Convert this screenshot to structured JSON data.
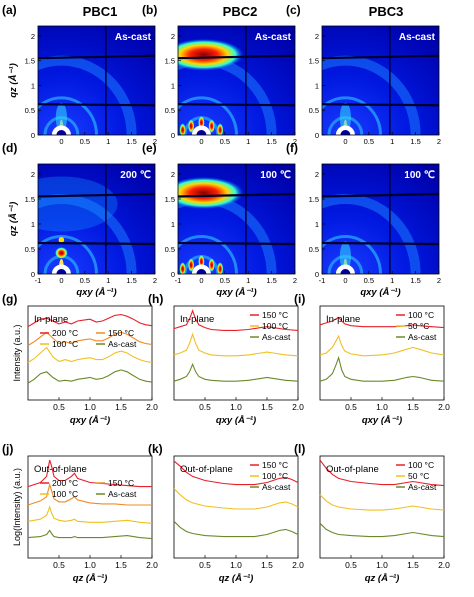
{
  "column_titles": [
    "PBC1",
    "PBC2",
    "PBC3"
  ],
  "panel_letters": [
    "(a)",
    "(b)",
    "(c)",
    "(d)",
    "(e)",
    "(f)",
    "(g)",
    "(h)",
    "(i)",
    "(j)",
    "(k)",
    "(l)"
  ],
  "giwaxs": {
    "ylabel": "qz (Å⁻¹)",
    "xlabel": "qxy (Å⁻¹)",
    "xticks": [
      "-1",
      "0",
      "1",
      "2"
    ],
    "xticks_wide": [
      "-1",
      "0",
      "0.5",
      "1",
      "1.5",
      "2"
    ],
    "yticks": [
      "0",
      "0.5",
      "1",
      "1.5",
      "2"
    ],
    "xlim": [
      -0.5,
      2.0
    ],
    "ylim": [
      0,
      2.2
    ],
    "colormap": [
      "#00007a",
      "#0000ff",
      "#00a8ff",
      "#20ffd8",
      "#c8ff30",
      "#ffd800",
      "#ff3000",
      "#900000"
    ],
    "panels": [
      {
        "label": "As-cast",
        "intensity": "low"
      },
      {
        "label": "As-cast",
        "intensity": "high"
      },
      {
        "label": "As-cast",
        "intensity": "low"
      },
      {
        "label": "200 ℃",
        "intensity": "medium"
      },
      {
        "label": "100 ℃",
        "intensity": "high"
      },
      {
        "label": "100 ℃",
        "intensity": "low"
      }
    ]
  },
  "chart_data": [
    {
      "type": "line",
      "panel": "(g)",
      "title": "In-plane",
      "xlabel": "qxy (Å⁻¹)",
      "ylabel": "Intensity (a.u.)",
      "xlim": [
        0.0,
        2.0
      ],
      "xticks": [
        0.5,
        1.0,
        1.5,
        2.0
      ],
      "series": [
        {
          "name": "200 °C",
          "color": "#e8202a",
          "x": [
            0.0,
            0.1,
            0.2,
            0.3,
            0.4,
            0.5,
            0.6,
            0.7,
            0.8,
            0.9,
            1.0,
            1.1,
            1.2,
            1.3,
            1.4,
            1.5,
            1.6,
            1.7,
            1.8,
            1.9,
            2.0
          ],
          "y": [
            0.78,
            0.82,
            0.86,
            0.87,
            0.84,
            0.81,
            0.83,
            0.81,
            0.84,
            0.85,
            0.86,
            0.83,
            0.84,
            0.87,
            0.9,
            0.91,
            0.89,
            0.86,
            0.82,
            0.8,
            0.79
          ]
        },
        {
          "name": "150 °C",
          "color": "#f08a24",
          "x": [
            0.0,
            0.1,
            0.2,
            0.3,
            0.4,
            0.5,
            0.6,
            0.7,
            0.8,
            0.9,
            1.0,
            1.1,
            1.2,
            1.3,
            1.4,
            1.5,
            1.6,
            1.7,
            1.8,
            1.9,
            2.0
          ],
          "y": [
            0.58,
            0.62,
            0.67,
            0.72,
            0.66,
            0.6,
            0.62,
            0.6,
            0.63,
            0.64,
            0.65,
            0.63,
            0.63,
            0.66,
            0.7,
            0.72,
            0.7,
            0.66,
            0.62,
            0.6,
            0.59
          ]
        },
        {
          "name": "100 °C",
          "color": "#f0c020",
          "x": [
            0.0,
            0.1,
            0.2,
            0.3,
            0.4,
            0.5,
            0.6,
            0.7,
            0.8,
            0.9,
            1.0,
            1.1,
            1.2,
            1.3,
            1.4,
            1.5,
            1.6,
            1.7,
            1.8,
            1.9,
            2.0
          ],
          "y": [
            0.4,
            0.44,
            0.5,
            0.56,
            0.46,
            0.41,
            0.43,
            0.41,
            0.43,
            0.44,
            0.45,
            0.43,
            0.43,
            0.46,
            0.5,
            0.52,
            0.5,
            0.46,
            0.43,
            0.41,
            0.4
          ]
        },
        {
          "name": "As-cast",
          "color": "#6a8a2a",
          "x": [
            0.0,
            0.1,
            0.2,
            0.3,
            0.4,
            0.5,
            0.6,
            0.7,
            0.8,
            0.9,
            1.0,
            1.1,
            1.2,
            1.3,
            1.4,
            1.5,
            1.6,
            1.7,
            1.8,
            1.9,
            2.0
          ],
          "y": [
            0.18,
            0.22,
            0.28,
            0.3,
            0.24,
            0.2,
            0.21,
            0.2,
            0.22,
            0.23,
            0.24,
            0.22,
            0.23,
            0.26,
            0.3,
            0.32,
            0.3,
            0.26,
            0.22,
            0.2,
            0.19
          ]
        }
      ]
    },
    {
      "type": "line",
      "panel": "(h)",
      "title": "In-plane",
      "xlabel": "qxy (Å⁻¹)",
      "ylabel": "",
      "xlim": [
        0.0,
        2.0
      ],
      "xticks": [
        0.5,
        1.0,
        1.5,
        2.0
      ],
      "series": [
        {
          "name": "150 °C",
          "color": "#e8202a",
          "x": [
            0.0,
            0.1,
            0.2,
            0.25,
            0.3,
            0.35,
            0.4,
            0.5,
            0.6,
            0.8,
            1.0,
            1.2,
            1.4,
            1.5,
            1.6,
            1.8,
            2.0
          ],
          "y": [
            0.76,
            0.78,
            0.8,
            0.86,
            0.95,
            0.86,
            0.8,
            0.77,
            0.75,
            0.74,
            0.74,
            0.75,
            0.77,
            0.78,
            0.77,
            0.75,
            0.74
          ]
        },
        {
          "name": "100 °C",
          "color": "#f0c020",
          "x": [
            0.0,
            0.1,
            0.2,
            0.25,
            0.3,
            0.35,
            0.4,
            0.5,
            0.6,
            0.8,
            1.0,
            1.2,
            1.4,
            1.5,
            1.6,
            1.8,
            2.0
          ],
          "y": [
            0.48,
            0.5,
            0.53,
            0.6,
            0.7,
            0.6,
            0.53,
            0.5,
            0.48,
            0.47,
            0.47,
            0.48,
            0.5,
            0.51,
            0.5,
            0.48,
            0.47
          ]
        },
        {
          "name": "As-cast",
          "color": "#6a8a2a",
          "x": [
            0.0,
            0.1,
            0.2,
            0.25,
            0.3,
            0.35,
            0.4,
            0.5,
            0.6,
            0.8,
            1.0,
            1.2,
            1.4,
            1.5,
            1.6,
            1.8,
            2.0
          ],
          "y": [
            0.2,
            0.22,
            0.25,
            0.3,
            0.38,
            0.3,
            0.25,
            0.22,
            0.21,
            0.2,
            0.2,
            0.21,
            0.23,
            0.24,
            0.23,
            0.21,
            0.2
          ]
        }
      ]
    },
    {
      "type": "line",
      "panel": "(i)",
      "title": "In-plane",
      "xlabel": "qxy (Å⁻¹)",
      "ylabel": "",
      "xlim": [
        0.0,
        2.0
      ],
      "xticks": [
        0.5,
        1.0,
        1.5,
        2.0
      ],
      "series": [
        {
          "name": "100 °C",
          "color": "#e8202a",
          "x": [
            0.0,
            0.1,
            0.2,
            0.25,
            0.3,
            0.35,
            0.4,
            0.5,
            0.7,
            1.0,
            1.2,
            1.4,
            1.5,
            1.6,
            1.8,
            2.0
          ],
          "y": [
            0.8,
            0.82,
            0.84,
            0.86,
            0.88,
            0.84,
            0.81,
            0.79,
            0.78,
            0.78,
            0.78,
            0.79,
            0.8,
            0.79,
            0.78,
            0.77
          ]
        },
        {
          "name": "50 °C",
          "color": "#f0c020",
          "x": [
            0.0,
            0.1,
            0.2,
            0.25,
            0.3,
            0.35,
            0.4,
            0.5,
            0.7,
            1.0,
            1.2,
            1.4,
            1.5,
            1.6,
            1.8,
            2.0
          ],
          "y": [
            0.48,
            0.5,
            0.56,
            0.62,
            0.68,
            0.58,
            0.52,
            0.49,
            0.47,
            0.48,
            0.5,
            0.54,
            0.56,
            0.54,
            0.5,
            0.48
          ]
        },
        {
          "name": "As-cast",
          "color": "#6a8a2a",
          "x": [
            0.0,
            0.1,
            0.2,
            0.25,
            0.3,
            0.35,
            0.4,
            0.5,
            0.7,
            1.0,
            1.2,
            1.4,
            1.5,
            1.6,
            1.8,
            2.0
          ],
          "y": [
            0.2,
            0.22,
            0.28,
            0.36,
            0.45,
            0.32,
            0.25,
            0.22,
            0.2,
            0.2,
            0.21,
            0.24,
            0.25,
            0.24,
            0.21,
            0.2
          ]
        }
      ]
    },
    {
      "type": "line",
      "panel": "(j)",
      "title": "Out-of-plane",
      "xlabel": "qz (Å⁻¹)",
      "ylabel": "Log(Intensity) (a.u.)",
      "xlim": [
        0.0,
        2.0
      ],
      "xticks": [
        0.5,
        1.0,
        1.5,
        2.0
      ],
      "series": [
        {
          "name": "200 °C",
          "color": "#e8202a",
          "x": [
            0.0,
            0.2,
            0.3,
            0.35,
            0.38,
            0.42,
            0.5,
            0.6,
            0.7,
            0.75,
            0.8,
            1.0,
            1.2,
            1.4,
            1.6,
            1.8,
            2.0
          ],
          "y": [
            0.7,
            0.74,
            0.8,
            0.96,
            0.9,
            0.8,
            0.76,
            0.76,
            0.8,
            0.83,
            0.78,
            0.74,
            0.73,
            0.72,
            0.71,
            0.7,
            0.7
          ]
        },
        {
          "name": "150 °C",
          "color": "#f08a24",
          "x": [
            0.0,
            0.2,
            0.3,
            0.35,
            0.38,
            0.42,
            0.5,
            0.6,
            0.7,
            0.75,
            0.8,
            1.0,
            1.2,
            1.4,
            1.6,
            1.8,
            2.0
          ],
          "y": [
            0.52,
            0.56,
            0.6,
            0.72,
            0.66,
            0.58,
            0.55,
            0.55,
            0.58,
            0.6,
            0.57,
            0.54,
            0.53,
            0.53,
            0.52,
            0.52,
            0.52
          ]
        },
        {
          "name": "100 °C",
          "color": "#f0c020",
          "x": [
            0.0,
            0.2,
            0.3,
            0.35,
            0.38,
            0.42,
            0.5,
            0.6,
            0.7,
            0.75,
            0.8,
            1.0,
            1.2,
            1.4,
            1.6,
            1.8,
            2.0
          ],
          "y": [
            0.36,
            0.38,
            0.42,
            0.5,
            0.44,
            0.39,
            0.37,
            0.36,
            0.37,
            0.38,
            0.36,
            0.35,
            0.35,
            0.36,
            0.37,
            0.35,
            0.34
          ]
        },
        {
          "name": "As-cast",
          "color": "#6a8a2a",
          "x": [
            0.0,
            0.2,
            0.3,
            0.35,
            0.38,
            0.42,
            0.5,
            0.6,
            0.7,
            0.75,
            0.8,
            1.0,
            1.2,
            1.4,
            1.6,
            1.8,
            2.0
          ],
          "y": [
            0.2,
            0.21,
            0.23,
            0.27,
            0.24,
            0.21,
            0.2,
            0.2,
            0.2,
            0.21,
            0.2,
            0.2,
            0.2,
            0.21,
            0.22,
            0.2,
            0.19
          ]
        }
      ]
    },
    {
      "type": "line",
      "panel": "(k)",
      "title": "Out-of-plane",
      "xlabel": "qz (Å⁻¹)",
      "ylabel": "",
      "xlim": [
        0.0,
        2.0
      ],
      "xticks": [
        0.5,
        1.0,
        1.5,
        2.0
      ],
      "series": [
        {
          "name": "150 °C",
          "color": "#e8202a",
          "x": [
            0.0,
            0.1,
            0.2,
            0.3,
            0.5,
            0.8,
            1.0,
            1.3,
            1.5,
            1.7,
            1.8,
            1.9,
            2.0
          ],
          "y": [
            0.95,
            0.9,
            0.84,
            0.8,
            0.76,
            0.73,
            0.72,
            0.72,
            0.74,
            0.78,
            0.79,
            0.77,
            0.74
          ]
        },
        {
          "name": "100 °C",
          "color": "#f0c020",
          "x": [
            0.0,
            0.1,
            0.2,
            0.3,
            0.5,
            0.8,
            1.0,
            1.3,
            1.5,
            1.7,
            1.8,
            1.9,
            2.0
          ],
          "y": [
            0.68,
            0.62,
            0.57,
            0.54,
            0.51,
            0.49,
            0.48,
            0.48,
            0.5,
            0.54,
            0.55,
            0.53,
            0.5
          ]
        },
        {
          "name": "As-cast",
          "color": "#6a8a2a",
          "x": [
            0.0,
            0.1,
            0.2,
            0.3,
            0.5,
            0.8,
            1.0,
            1.3,
            1.5,
            1.7,
            1.8,
            1.9,
            2.0
          ],
          "y": [
            0.36,
            0.3,
            0.26,
            0.24,
            0.22,
            0.21,
            0.21,
            0.21,
            0.23,
            0.27,
            0.28,
            0.26,
            0.23
          ]
        }
      ]
    },
    {
      "type": "line",
      "panel": "(l)",
      "title": "Out-of-plane",
      "xlabel": "qz (Å⁻¹)",
      "ylabel": "",
      "xlim": [
        0.0,
        2.0
      ],
      "xticks": [
        0.5,
        1.0,
        1.5,
        2.0
      ],
      "series": [
        {
          "name": "100 °C",
          "color": "#e8202a",
          "x": [
            0.0,
            0.1,
            0.2,
            0.3,
            0.5,
            0.8,
            1.0,
            1.2,
            1.4,
            1.5,
            1.6,
            1.8,
            2.0
          ],
          "y": [
            0.96,
            0.88,
            0.82,
            0.78,
            0.75,
            0.73,
            0.72,
            0.72,
            0.74,
            0.75,
            0.74,
            0.72,
            0.71
          ]
        },
        {
          "name": "50 °C",
          "color": "#f0c020",
          "x": [
            0.0,
            0.1,
            0.2,
            0.3,
            0.5,
            0.8,
            1.0,
            1.2,
            1.4,
            1.5,
            1.6,
            1.8,
            2.0
          ],
          "y": [
            0.62,
            0.56,
            0.52,
            0.5,
            0.48,
            0.47,
            0.47,
            0.48,
            0.5,
            0.51,
            0.5,
            0.48,
            0.47
          ]
        },
        {
          "name": "As-cast",
          "color": "#6a8a2a",
          "x": [
            0.0,
            0.1,
            0.2,
            0.3,
            0.5,
            0.8,
            1.0,
            1.2,
            1.4,
            1.5,
            1.6,
            1.8,
            2.0
          ],
          "y": [
            0.34,
            0.28,
            0.25,
            0.23,
            0.22,
            0.21,
            0.21,
            0.22,
            0.24,
            0.25,
            0.24,
            0.22,
            0.21
          ]
        }
      ]
    }
  ]
}
